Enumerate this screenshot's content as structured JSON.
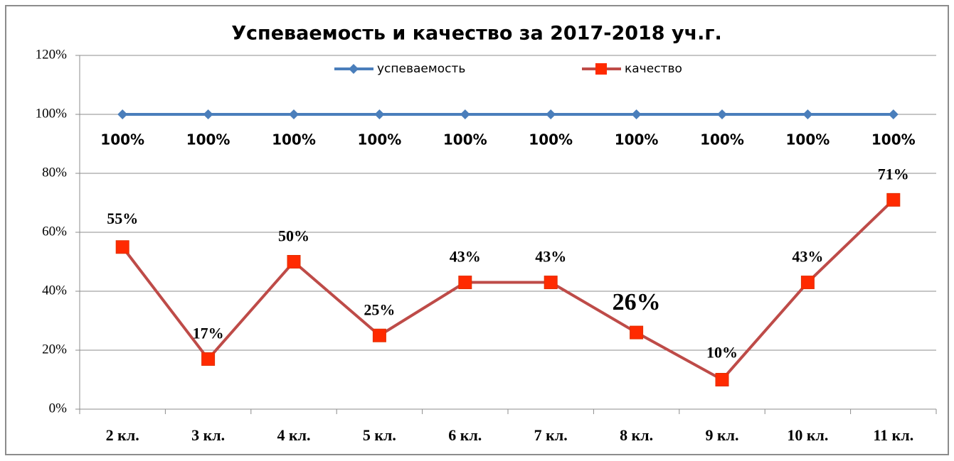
{
  "chart_data": {
    "type": "line",
    "title": "Успеваемость и качество за 2017-2018 уч.г.",
    "categories": [
      "2 кл.",
      "3 кл.",
      "4 кл.",
      "5 кл.",
      "6 кл.",
      "7 кл.",
      "8 кл.",
      "9 кл.",
      "10 кл.",
      "11 кл."
    ],
    "series": [
      {
        "name": "успеваемость",
        "color": "#4a7ebb",
        "values": [
          100,
          100,
          100,
          100,
          100,
          100,
          100,
          100,
          100,
          100
        ],
        "value_labels": [
          "100%",
          "100%",
          "100%",
          "100%",
          "100%",
          "100%",
          "100%",
          "100%",
          "100%",
          "100%"
        ]
      },
      {
        "name": "качество",
        "color": "#be4b48",
        "values": [
          55,
          17,
          50,
          25,
          43,
          43,
          26,
          10,
          43,
          71
        ],
        "value_labels": [
          "55%",
          "17%",
          "50%",
          "25%",
          "43%",
          "43%",
          "26%",
          "10%",
          "43%",
          "71%"
        ]
      }
    ],
    "ylim": [
      0,
      120
    ],
    "yticks": [
      {
        "value": 0,
        "label": "0%"
      },
      {
        "value": 20,
        "label": "20%"
      },
      {
        "value": 40,
        "label": "40%"
      },
      {
        "value": 60,
        "label": "60%"
      },
      {
        "value": 80,
        "label": "80%"
      },
      {
        "value": 100,
        "label": "100%"
      },
      {
        "value": 120,
        "label": "120%"
      }
    ],
    "grid": true,
    "legend": "top"
  }
}
